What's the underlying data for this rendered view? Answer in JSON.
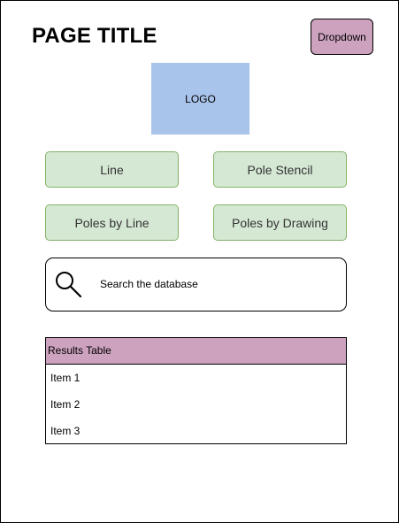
{
  "header": {
    "title": "PAGE TITLE",
    "dropdown_label": "Dropdown"
  },
  "logo": {
    "label": "LOGO"
  },
  "nav_buttons": [
    {
      "label": "Line"
    },
    {
      "label": "Pole Stencil"
    },
    {
      "label": "Poles by Line"
    },
    {
      "label": "Poles by Drawing"
    }
  ],
  "search": {
    "icon": "search-icon",
    "text": "Search the database"
  },
  "results": {
    "header": "Results Table",
    "items": [
      "Item 1",
      "Item 2",
      "Item 3"
    ]
  },
  "colors": {
    "dropdown_fill": "#cda2be",
    "logo_fill": "#a9c4eb",
    "button_fill": "#d5e8d4",
    "button_border": "#82b366",
    "results_header_fill": "#cda2be"
  }
}
